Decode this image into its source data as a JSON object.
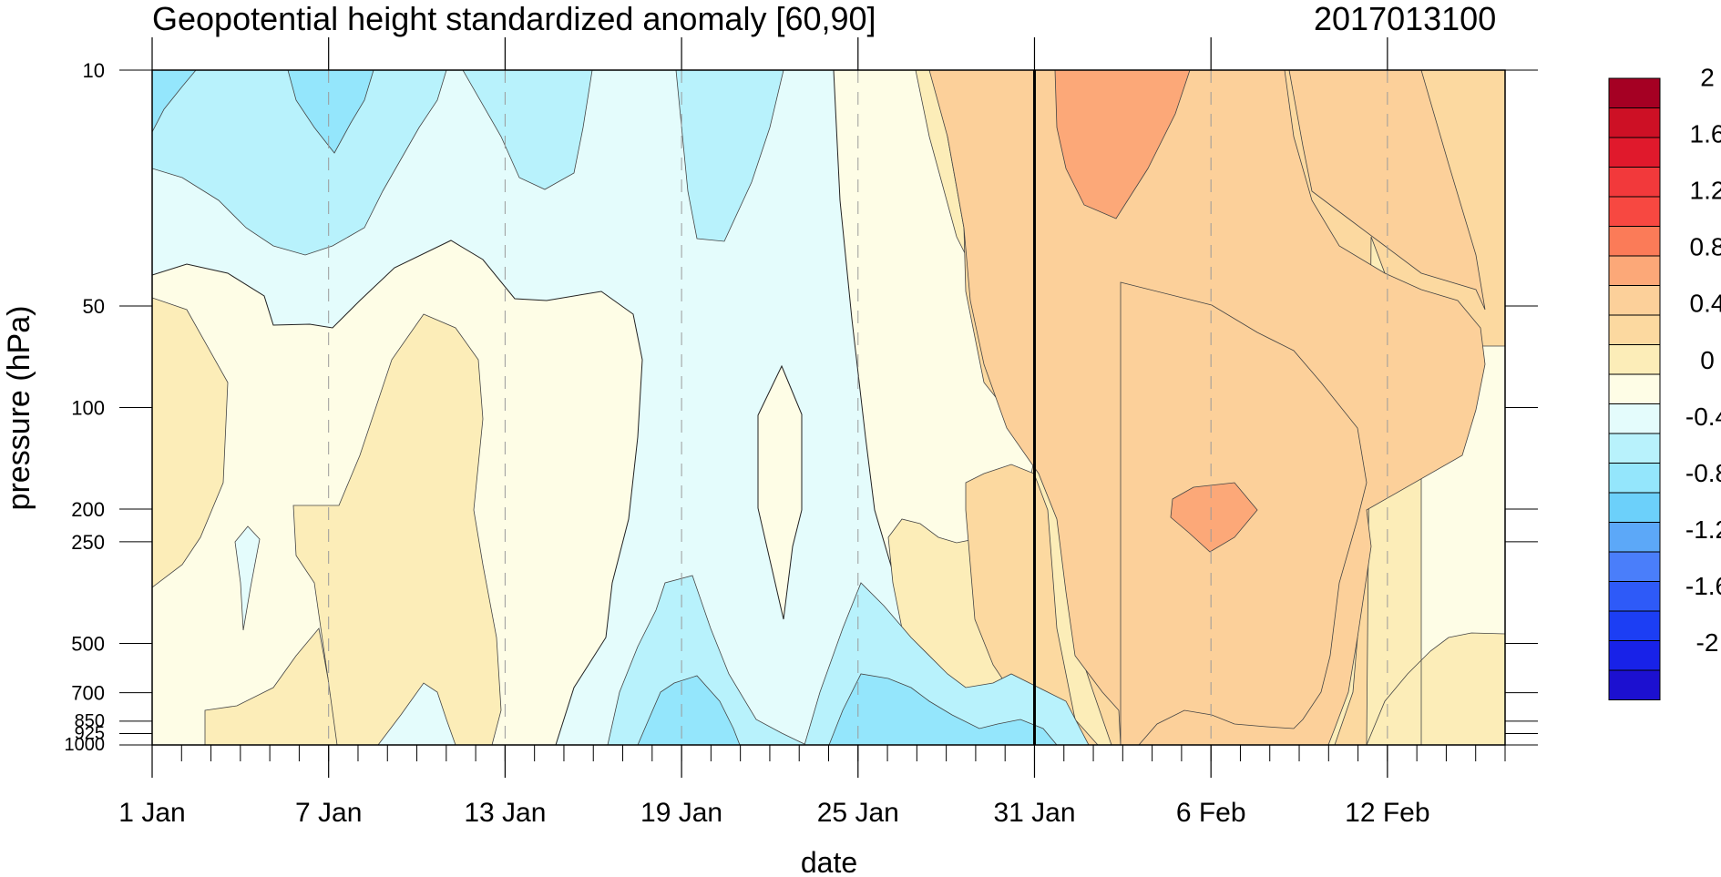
{
  "title": "Geopotential height standardized anomaly [60,90]",
  "stamp": "2017013100",
  "chart_data": {
    "type": "heatmap",
    "subtype": "filled contour (time-pressure cross section)",
    "title": "Geopotential height standardized anomaly [60,90]",
    "annotation": "2017013100",
    "xlabel": "date",
    "ylabel": "pressure (hPa)",
    "x_ticks": [
      "1 Jan",
      "7 Jan",
      "13 Jan",
      "19 Jan",
      "25 Jan",
      "31 Jan",
      "6 Feb",
      "12 Feb"
    ],
    "x_range": [
      "1 Jan",
      "16 Feb"
    ],
    "y_ticks": [
      10,
      50,
      100,
      200,
      250,
      500,
      700,
      850,
      925,
      1000
    ],
    "y_scale": "log",
    "y_range": [
      1000,
      10
    ],
    "current_date_line": "31 Jan",
    "levels": [
      -2.2,
      -2,
      -1.8,
      -1.6,
      -1.4,
      -1.2,
      -1,
      -0.8,
      -0.6,
      -0.4,
      -0.2,
      0,
      0.2,
      0.4,
      0.6,
      0.8,
      1,
      1.2,
      1.4,
      1.6,
      1.8,
      2,
      2.2
    ],
    "colorbar_labels": [
      "2",
      "1.6",
      "1.2",
      "0.8",
      "0.4",
      "0",
      "-0.4",
      "-0.8",
      "-1.2",
      "-1.6",
      "-2"
    ],
    "colors": [
      "#1c10d0",
      "#1822e8",
      "#1c3ef4",
      "#2e5af8",
      "#4a7efa",
      "#5ca8f8",
      "#6cd0fa",
      "#94e6fc",
      "#b8f2fc",
      "#e4fcfc",
      "#fefde6",
      "#fcedb8",
      "#fcd9a0",
      "#fcd09a",
      "#fca878",
      "#fb7b58",
      "#f74841",
      "#f2393b",
      "#e0192c",
      "#cd1025",
      "#a50023"
    ],
    "shading": [
      {
        "level_range": [
          -0.4,
          -0.2
        ],
        "color": "#b8f2fc"
      },
      {
        "level_range": [
          -0.2,
          0
        ],
        "color": "#e4fcfc"
      },
      {
        "level_range": [
          0,
          0.2
        ],
        "color": "#fefde6"
      },
      {
        "level_range": [
          0.2,
          0.4
        ],
        "color": "#fcedb8"
      },
      {
        "level_range": [
          0.4,
          0.6
        ],
        "color": "#fcd9a0"
      },
      {
        "level_range": [
          0.6,
          0.8
        ],
        "color": "#fcd09a"
      },
      {
        "level_range": [
          0.8,
          1.0
        ],
        "color": "#fca878"
      }
    ],
    "approx_extremes": [
      {
        "date": "2 Feb",
        "pressure_hPa": 15,
        "value": 0.9
      },
      {
        "date": "6 Feb",
        "pressure_hPa": 200,
        "value": 0.85
      },
      {
        "date": "9 Jan",
        "pressure_hPa": 200,
        "value": 0.7
      },
      {
        "date": "6 Jan",
        "pressure_hPa": 12,
        "value": -0.5
      },
      {
        "date": "19 Jan",
        "pressure_hPa": 925,
        "value": -0.5
      }
    ]
  }
}
